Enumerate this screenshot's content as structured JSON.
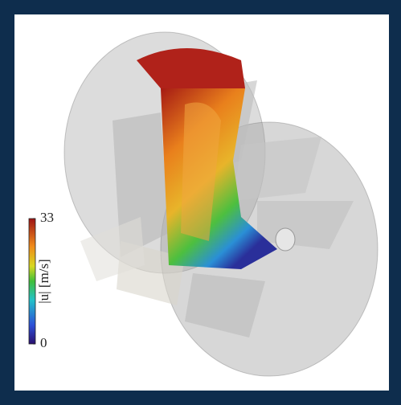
{
  "colorbar": {
    "label": "|u| [m/s]",
    "range": [
      0,
      33
    ],
    "ticks": [
      0,
      33
    ]
  }
}
